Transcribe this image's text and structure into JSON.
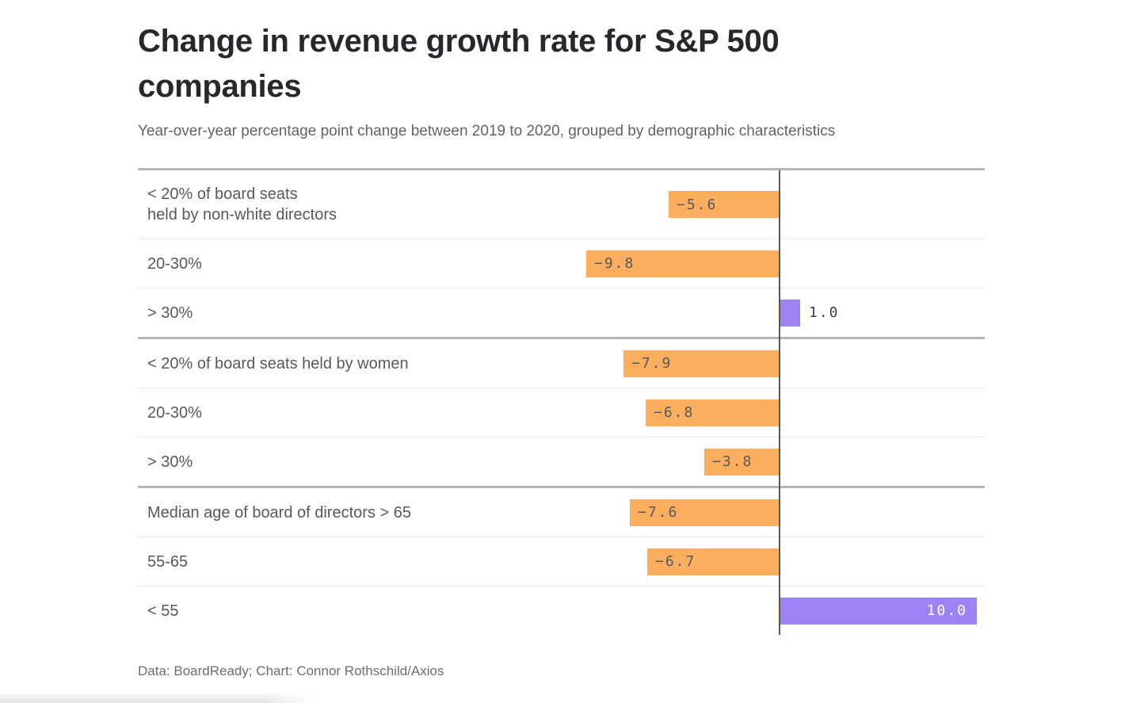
{
  "chart_data": {
    "type": "bar",
    "orientation": "horizontal",
    "title": "Change in revenue growth rate for S&P 500 companies",
    "subtitle": "Year-over-year percentage point change between 2019 to 2020, grouped by demographic characteristics",
    "source": "Data: BoardReady; Chart: Connor Rothschild/Axios",
    "value_unit": "percentage points",
    "value_range": [
      -9.8,
      10.0
    ],
    "zero_axis": true,
    "grid": false,
    "legend": false,
    "colors": {
      "negative_bar": "#FBAE5E",
      "positive_bar": "#9C82F4",
      "negative_value_label": "#55585D",
      "positive_value_label_inside": "#FFFFFF",
      "positive_value_label_outside": "#3E4145",
      "axis_line": "#54575A",
      "group_border": "#B4B6B8",
      "row_divider": "#E5E6E7"
    },
    "rows": [
      {
        "label_lines": [
          "< 20% of board seats",
          "held by non-white directors"
        ],
        "value": -5.6,
        "display": "−5.6",
        "label_position": "inside-start",
        "tall": true,
        "group_end": false
      },
      {
        "label_lines": [
          "20-30%"
        ],
        "value": -9.8,
        "display": "−9.8",
        "label_position": "inside-start",
        "tall": false,
        "group_end": false
      },
      {
        "label_lines": [
          "> 30%"
        ],
        "value": 1.0,
        "display": "1.0",
        "label_position": "outside-end",
        "tall": false,
        "group_end": true
      },
      {
        "label_lines": [
          "< 20% of board seats held by women"
        ],
        "value": -7.9,
        "display": "−7.9",
        "label_position": "inside-start",
        "tall": false,
        "group_end": false
      },
      {
        "label_lines": [
          "20-30%"
        ],
        "value": -6.8,
        "display": "−6.8",
        "label_position": "inside-start",
        "tall": false,
        "group_end": false
      },
      {
        "label_lines": [
          "> 30%"
        ],
        "value": -3.8,
        "display": "−3.8",
        "label_position": "inside-start",
        "tall": false,
        "group_end": true
      },
      {
        "label_lines": [
          "Median age of board of directors > 65"
        ],
        "value": -7.6,
        "display": "−7.6",
        "label_position": "inside-start",
        "tall": false,
        "group_end": false
      },
      {
        "label_lines": [
          "55-65"
        ],
        "value": -6.7,
        "display": "−6.7",
        "label_position": "inside-start",
        "tall": false,
        "group_end": false
      },
      {
        "label_lines": [
          "< 55"
        ],
        "value": 10.0,
        "display": "10.0",
        "label_position": "inside-end",
        "tall": false,
        "group_end": false
      }
    ]
  }
}
